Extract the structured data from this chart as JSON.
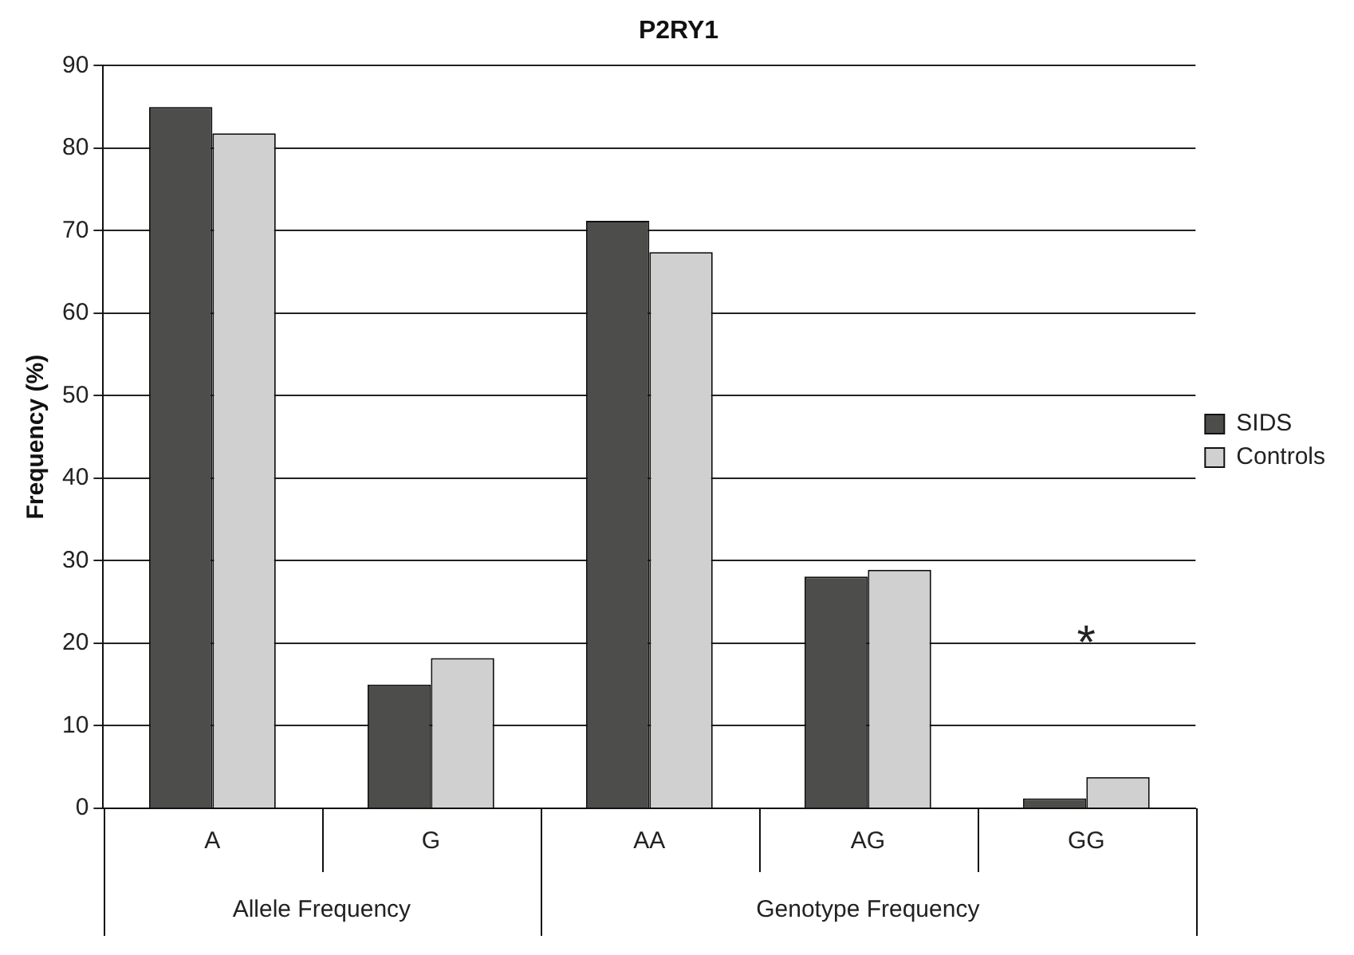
{
  "chart_data": {
    "type": "bar",
    "title": "P2RY1",
    "ylabel": "Frequency (%)",
    "categories": [
      "A",
      "G",
      "AA",
      "AG",
      "GG"
    ],
    "series": [
      {
        "name": "SIDS",
        "color": "#4d4d4b",
        "values": [
          85.0,
          15.0,
          71.2,
          28.1,
          1.2
        ]
      },
      {
        "name": "Controls",
        "color": "#d0d0d0",
        "values": [
          81.8,
          18.2,
          67.4,
          28.9,
          3.8
        ]
      }
    ],
    "ylim": [
      0,
      90
    ],
    "yticks": [
      0,
      10,
      20,
      30,
      40,
      50,
      60,
      70,
      80,
      90
    ],
    "grid": "y",
    "legend": "right",
    "annotations": [
      "Allele Frequency",
      "Genotype Frequency",
      "*"
    ]
  }
}
